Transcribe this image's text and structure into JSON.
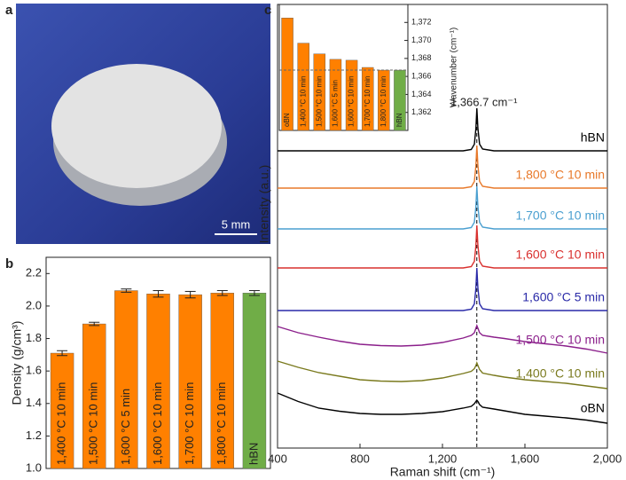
{
  "panel_labels": [
    "a",
    "b",
    "c"
  ],
  "photo": {
    "scale_bar": "5 mm"
  },
  "chart_data": [
    {
      "type": "bar",
      "ylabel": "Density (g/cm³)",
      "categories": [
        "1,400 °C 10 min",
        "1,500 °C 10 min",
        "1,600 °C 5 min",
        "1,600 °C 10 min",
        "1,700 °C 10 min",
        "1,800 °C 10 min",
        "hBN"
      ],
      "values": [
        1.71,
        1.89,
        2.095,
        2.075,
        2.07,
        2.08,
        2.08
      ],
      "errors": [
        0.015,
        0.01,
        0.01,
        0.02,
        0.02,
        0.015,
        0.015
      ],
      "colors": [
        "#ff8000",
        "#ff8000",
        "#ff8000",
        "#ff8000",
        "#ff8000",
        "#ff8000",
        "#70ad47"
      ],
      "ylim": [
        1,
        2.3
      ],
      "yticks": [
        {
          "value": 1,
          "label": "1.0"
        },
        1.2,
        1.4,
        1.6,
        1.8,
        {
          "value": 2,
          "label": "2.0"
        },
        2.2
      ]
    },
    {
      "type": "line",
      "xlabel": "Raman shift (cm⁻¹)",
      "ylabel": "Intensity (a.u.)",
      "x": [
        400,
        500,
        600,
        700,
        800,
        900,
        1000,
        1100,
        1200,
        1300,
        1340,
        1355,
        1362,
        1366.7,
        1372,
        1380,
        1395,
        1450,
        1500,
        1600,
        1700,
        1800,
        1900,
        2000
      ],
      "series": [
        {
          "name": "hBN",
          "color": "#000000",
          "values": [
            67,
            67,
            67,
            67,
            67,
            67,
            67,
            67,
            67,
            67,
            67.3,
            68.5,
            72,
            76.6,
            72,
            68.5,
            67.4,
            67,
            67,
            67,
            67,
            67,
            67,
            67
          ]
        },
        {
          "name": "1,800 °C 10 min",
          "color": "#e8792a",
          "values": [
            58.6,
            58.6,
            58.6,
            58.6,
            58.6,
            58.6,
            58.6,
            58.6,
            58.6,
            58.6,
            58.9,
            60.1,
            63.6,
            68.2,
            63.6,
            60.1,
            59,
            58.6,
            58.6,
            58.6,
            58.6,
            58.6,
            58.6,
            58.6
          ]
        },
        {
          "name": "1,700 °C 10 min",
          "color": "#4a9fd0",
          "values": [
            49.4,
            49.4,
            49.4,
            49.4,
            49.4,
            49.4,
            49.4,
            49.4,
            49.4,
            49.4,
            49.7,
            50.9,
            54.4,
            59,
            54.4,
            50.9,
            49.8,
            49.4,
            49.4,
            49.4,
            49.4,
            49.4,
            49.4,
            49.4
          ]
        },
        {
          "name": "1,600 °C 10 min",
          "color": "#d9302e",
          "values": [
            40.6,
            40.6,
            40.6,
            40.6,
            40.6,
            40.6,
            40.6,
            40.6,
            40.6,
            40.6,
            40.9,
            42.1,
            45.6,
            50.2,
            45.6,
            42.1,
            41,
            40.6,
            40.6,
            40.6,
            40.6,
            40.6,
            40.6,
            40.6
          ]
        },
        {
          "name": "1,600 °C  5 min",
          "color": "#2a2aa8",
          "values": [
            31,
            31,
            31,
            31,
            31,
            31,
            31,
            31,
            31,
            31,
            31.3,
            32.5,
            36,
            40.6,
            36,
            32.5,
            31.4,
            31,
            31,
            31,
            31,
            31,
            31,
            31
          ]
        },
        {
          "name": "1,500 °C 10 min",
          "color": "#8b1f8b",
          "values": [
            27.4,
            26,
            25,
            24.1,
            23.4,
            23.1,
            23,
            23.2,
            23.8,
            24.8,
            25.4,
            26,
            27,
            27.6,
            27,
            26,
            25.4,
            25,
            24.7,
            24,
            23.5,
            23,
            22.3,
            21.4
          ]
        },
        {
          "name": "1,400 °C 10 min",
          "color": "#7a7a1e",
          "values": [
            19.6,
            18.2,
            17,
            16.2,
            15.4,
            15.1,
            15,
            15.2,
            15.8,
            16.8,
            17.3,
            17.9,
            18.6,
            19.2,
            18.6,
            17.7,
            16.9,
            16.4,
            16,
            15.4,
            15,
            14.6,
            14,
            13.4
          ]
        },
        {
          "name": "oBN",
          "color": "#000000",
          "values": [
            12.4,
            10.5,
            9,
            8.3,
            7.8,
            7.6,
            7.6,
            7.8,
            8.2,
            9,
            9.4,
            10,
            10.5,
            10.8,
            10.5,
            9.8,
            9.2,
            8.8,
            8.4,
            7.6,
            7.2,
            6.8,
            6.3,
            5.6
          ]
        }
      ],
      "xlim": [
        400,
        2000
      ],
      "xticks": [
        400,
        800,
        {
          "value": 1200,
          "label": "1,200"
        },
        {
          "value": 1600,
          "label": "1,600"
        },
        {
          "value": 2000,
          "label": "2,000"
        }
      ],
      "ylim": [
        0,
        100
      ],
      "annotation": "1,366.7 cm⁻¹",
      "peak_line": 1366.7
    },
    {
      "type": "bar",
      "ylabel": "Wavenumber (cm⁻¹)",
      "categories": [
        "oBN",
        "1,400 °C 10 min",
        "1,500 °C 10 min",
        "1,600 °C 5 min",
        "1,600 °C 10 min",
        "1,700 °C 10 min",
        "1,800 °C 10 min",
        "hBN"
      ],
      "values": [
        1372.5,
        1369.7,
        1368.5,
        1367.9,
        1367.8,
        1367.0,
        1366.7,
        1366.7
      ],
      "colors": [
        "#ff8000",
        "#ff8000",
        "#ff8000",
        "#ff8000",
        "#ff8000",
        "#ff8000",
        "#ff8000",
        "#70ad47"
      ],
      "ylim": [
        1360,
        1374
      ],
      "yticks": [
        {
          "value": 1362,
          "label": "1,362"
        },
        {
          "value": 1364,
          "label": "1,364"
        },
        {
          "value": 1366,
          "label": "1,366"
        },
        {
          "value": 1368,
          "label": "1,368"
        },
        {
          "value": 1370,
          "label": "1,370"
        },
        {
          "value": 1372,
          "label": "1,372"
        }
      ],
      "y_axis_side": "right",
      "reference_line": 1366.7
    }
  ]
}
